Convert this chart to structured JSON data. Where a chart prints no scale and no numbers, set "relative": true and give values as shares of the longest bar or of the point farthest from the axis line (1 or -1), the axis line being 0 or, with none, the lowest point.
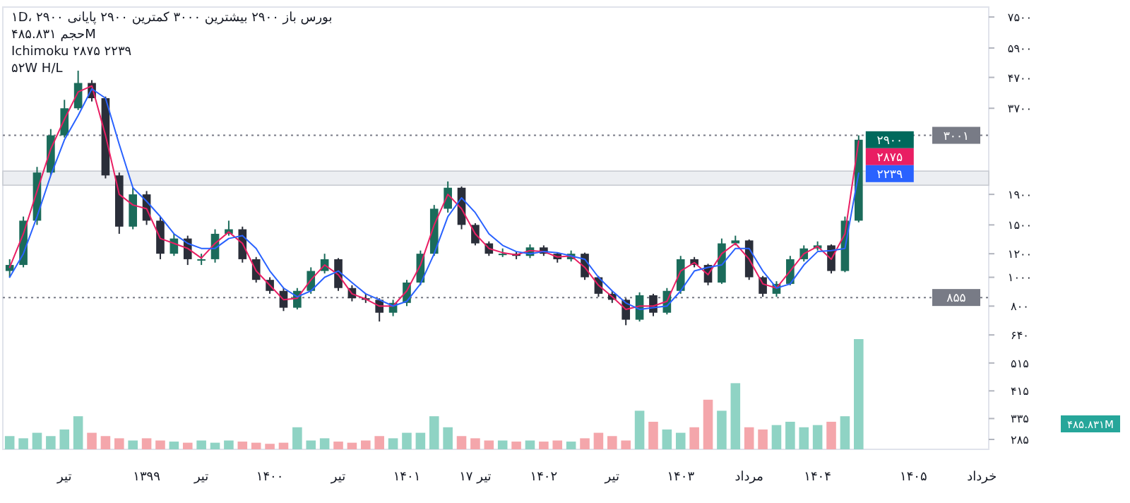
{
  "chart_data": [
    {
      "type": "candlestick",
      "log": true,
      "grid": false,
      "categories": [
        null,
        null,
        null,
        null,
        "تیر",
        null,
        null,
        null,
        null,
        null,
        "۱۳۹۹",
        null,
        null,
        null,
        "تیر",
        null,
        null,
        null,
        null,
        "۱۴۰۰",
        null,
        null,
        null,
        null,
        "تیر",
        null,
        null,
        null,
        null,
        "۱۴۰۱",
        null,
        null,
        null,
        null,
        "۱۷ تیر",
        null,
        null,
        null,
        null,
        "۱۴۰۲",
        null,
        null,
        null,
        null,
        "تیر",
        null,
        null,
        null,
        null,
        "۱۴۰۳",
        null,
        null,
        null,
        null,
        "مرداد",
        null,
        null,
        null,
        null,
        "۱۴۰۴",
        null,
        null,
        null,
        null,
        null,
        null,
        "۱۴۰۵",
        null,
        null,
        null,
        null,
        "خرداد"
      ],
      "ohlc": [
        [
          1050,
          1150,
          1000,
          1100
        ],
        [
          1100,
          1600,
          1080,
          1550
        ],
        [
          1550,
          2350,
          1500,
          2250
        ],
        [
          2250,
          3150,
          2200,
          3000
        ],
        [
          3000,
          3950,
          2950,
          3700
        ],
        [
          3700,
          4950,
          3650,
          4500
        ],
        [
          4500,
          4600,
          3900,
          4000
        ],
        [
          4000,
          4050,
          2150,
          2200
        ],
        [
          2200,
          2250,
          1400,
          1480
        ],
        [
          1480,
          2000,
          1450,
          1900
        ],
        [
          1900,
          1950,
          1500,
          1550
        ],
        [
          1550,
          1600,
          1150,
          1200
        ],
        [
          1200,
          1400,
          1180,
          1350
        ],
        [
          1350,
          1380,
          1100,
          1150
        ],
        [
          1150,
          1200,
          1100,
          1150
        ],
        [
          1150,
          1450,
          1120,
          1400
        ],
        [
          1400,
          1550,
          1380,
          1450
        ],
        [
          1450,
          1480,
          1120,
          1150
        ],
        [
          1150,
          1170,
          960,
          980
        ],
        [
          980,
          1000,
          880,
          900
        ],
        [
          900,
          920,
          770,
          790
        ],
        [
          790,
          920,
          780,
          900
        ],
        [
          900,
          1080,
          880,
          1050
        ],
        [
          1050,
          1200,
          1030,
          1150
        ],
        [
          1150,
          1160,
          900,
          920
        ],
        [
          920,
          940,
          830,
          850
        ],
        [
          850,
          880,
          820,
          840
        ],
        [
          840,
          850,
          710,
          760
        ],
        [
          760,
          840,
          740,
          820
        ],
        [
          820,
          980,
          800,
          960
        ],
        [
          960,
          1230,
          940,
          1200
        ],
        [
          1200,
          1750,
          1180,
          1700
        ],
        [
          1700,
          2100,
          1650,
          2000
        ],
        [
          2000,
          2020,
          1450,
          1500
        ],
        [
          1500,
          1520,
          1280,
          1300
        ],
        [
          1300,
          1320,
          1180,
          1200
        ],
        [
          1200,
          1250,
          1170,
          1200
        ],
        [
          1200,
          1220,
          1150,
          1180
        ],
        [
          1180,
          1290,
          1160,
          1260
        ],
        [
          1260,
          1280,
          1180,
          1200
        ],
        [
          1200,
          1210,
          1120,
          1150
        ],
        [
          1150,
          1230,
          1130,
          1200
        ],
        [
          1200,
          1210,
          980,
          1000
        ],
        [
          1000,
          1010,
          860,
          880
        ],
        [
          880,
          900,
          820,
          840
        ],
        [
          840,
          850,
          690,
          720
        ],
        [
          720,
          890,
          710,
          870
        ],
        [
          870,
          880,
          740,
          760
        ],
        [
          760,
          920,
          750,
          900
        ],
        [
          900,
          1180,
          880,
          1150
        ],
        [
          1150,
          1170,
          1080,
          1100
        ],
        [
          1100,
          1110,
          940,
          960
        ],
        [
          960,
          1350,
          950,
          1300
        ],
        [
          1300,
          1380,
          1280,
          1330
        ],
        [
          1330,
          1340,
          980,
          1000
        ],
        [
          1000,
          1010,
          860,
          880
        ],
        [
          880,
          970,
          860,
          950
        ],
        [
          950,
          1180,
          940,
          1150
        ],
        [
          1150,
          1280,
          1130,
          1250
        ],
        [
          1250,
          1320,
          1230,
          1280
        ],
        [
          1280,
          1290,
          1030,
          1050
        ],
        [
          1050,
          1600,
          1040,
          1550
        ],
        [
          1550,
          3000,
          1530,
          2900
        ],
        null,
        null,
        null,
        null,
        null,
        null,
        null,
        null,
        null
      ],
      "value_labels": [
        null,
        null,
        null,
        null,
        null,
        null,
        null,
        null,
        null,
        null,
        null,
        null,
        null,
        null,
        null,
        null,
        null,
        null,
        null,
        null,
        null,
        null,
        null,
        null,
        null,
        null,
        null,
        null,
        null,
        null,
        null,
        null,
        null,
        null,
        null,
        null,
        null,
        null,
        null,
        null,
        null,
        null,
        null,
        null,
        null,
        null,
        null,
        null,
        null,
        null,
        null,
        null,
        null,
        null,
        null,
        null,
        null,
        null,
        null,
        null,
        null,
        null,
        "۲۹۰۰",
        null,
        null,
        null,
        null,
        null,
        null,
        null,
        null,
        null
      ],
      "colors": [
        "#1b6b5a",
        "#1b6b5a",
        "#1b6b5a",
        "#1b6b5a",
        "#1b6b5a",
        "#1b6b5a",
        "#2a2e39",
        "#2a2e39",
        "#2a2e39",
        "#1b6b5a",
        "#2a2e39",
        "#2a2e39",
        "#1b6b5a",
        "#2a2e39",
        "#1b6b5a",
        "#1b6b5a",
        "#1b6b5a",
        "#2a2e39",
        "#2a2e39",
        "#2a2e39",
        "#2a2e39",
        "#1b6b5a",
        "#1b6b5a",
        "#1b6b5a",
        "#2a2e39",
        "#2a2e39",
        "#2a2e39",
        "#2a2e39",
        "#1b6b5a",
        "#1b6b5a",
        "#1b6b5a",
        "#1b6b5a",
        "#1b6b5a",
        "#2a2e39",
        "#2a2e39",
        "#2a2e39",
        "#1b6b5a",
        "#2a2e39",
        "#1b6b5a",
        "#2a2e39",
        "#2a2e39",
        "#1b6b5a",
        "#2a2e39",
        "#2a2e39",
        "#2a2e39",
        "#2a2e39",
        "#1b6b5a",
        "#2a2e39",
        "#1b6b5a",
        "#1b6b5a",
        "#2a2e39",
        "#2a2e39",
        "#1b6b5a",
        "#1b6b5a",
        "#2a2e39",
        "#2a2e39",
        "#1b6b5a",
        "#1b6b5a",
        "#1b6b5a",
        "#1b6b5a",
        "#2a2e39",
        "#1b6b5a",
        "#1b6b5a",
        null,
        null,
        null,
        null,
        null,
        null,
        null,
        null,
        null
      ],
      "series": [
        {
          "type": "line",
          "color": "#e91e63",
          "values": [
            1080,
            1400,
            1950,
            2700,
            3400,
            4200,
            4400,
            3000,
            1900,
            1750,
            1700,
            1350,
            1300,
            1250,
            1160,
            1300,
            1420,
            1300,
            1050,
            940,
            840,
            850,
            980,
            1100,
            1020,
            880,
            845,
            800,
            800,
            900,
            1100,
            1500,
            1900,
            1700,
            1400,
            1250,
            1210,
            1190,
            1230,
            1220,
            1170,
            1180,
            1080,
            940,
            860,
            780,
            800,
            800,
            830,
            1050,
            1120,
            1020,
            1200,
            1300,
            1150,
            950,
            920,
            1050,
            1200,
            1270,
            1150,
            1400,
            2875,
            null,
            null,
            null,
            null,
            null,
            null,
            null,
            null,
            null
          ],
          "value_labels": [
            null,
            null,
            null,
            null,
            null,
            null,
            null,
            null,
            null,
            null,
            null,
            null,
            null,
            null,
            null,
            null,
            null,
            null,
            null,
            null,
            null,
            null,
            null,
            null,
            null,
            null,
            null,
            null,
            null,
            null,
            null,
            null,
            null,
            null,
            null,
            null,
            null,
            null,
            null,
            null,
            null,
            null,
            null,
            null,
            null,
            null,
            null,
            null,
            null,
            null,
            null,
            null,
            null,
            null,
            null,
            null,
            null,
            null,
            null,
            null,
            null,
            null,
            "۲۸۷۵",
            null,
            null,
            null,
            null,
            null,
            null,
            null,
            null,
            null
          ]
        },
        {
          "type": "line",
          "color": "#2962ff",
          "values": [
            1000,
            1200,
            1600,
            2200,
            2900,
            3500,
            4300,
            4000,
            2800,
            2000,
            1800,
            1600,
            1400,
            1300,
            1250,
            1250,
            1350,
            1380,
            1250,
            1050,
            920,
            860,
            900,
            1000,
            1050,
            960,
            880,
            840,
            800,
            830,
            950,
            1200,
            1600,
            1850,
            1650,
            1400,
            1280,
            1220,
            1200,
            1220,
            1210,
            1180,
            1150,
            1000,
            900,
            820,
            780,
            790,
            800,
            900,
            1050,
            1080,
            1100,
            1250,
            1250,
            1050,
            920,
            950,
            1100,
            1220,
            1230,
            1250,
            2239,
            null,
            null,
            null,
            null,
            null,
            null,
            null,
            null,
            null
          ],
          "value_labels": [
            null,
            null,
            null,
            null,
            null,
            null,
            null,
            null,
            null,
            null,
            null,
            null,
            null,
            null,
            null,
            null,
            null,
            null,
            null,
            null,
            null,
            null,
            null,
            null,
            null,
            null,
            null,
            null,
            null,
            null,
            null,
            null,
            null,
            null,
            null,
            null,
            null,
            null,
            null,
            null,
            null,
            null,
            null,
            null,
            null,
            null,
            null,
            null,
            null,
            null,
            null,
            null,
            null,
            null,
            null,
            null,
            null,
            null,
            null,
            null,
            null,
            null,
            "۲۲۳۹",
            null,
            null,
            null,
            null,
            null,
            null,
            null,
            null,
            null
          ]
        }
      ],
      "ylim": [
        264,
        8100
      ],
      "yticks": [
        {
          "value": 7500,
          "label": "۷۵۰۰"
        },
        {
          "value": 5900,
          "label": "۵۹۰۰"
        },
        {
          "value": 4700,
          "label": "۴۷۰۰"
        },
        {
          "value": 3700,
          "label": "۳۷۰۰"
        },
        {
          "value": 1900,
          "label": "۱۹۰۰"
        },
        {
          "value": 1500,
          "label": "۱۵۰۰"
        },
        {
          "value": 1200,
          "label": "۱۲۰۰"
        },
        {
          "value": 1000,
          "label": "۱۰۰۰"
        },
        {
          "value": 800,
          "label": "۸۰۰"
        },
        {
          "value": 640,
          "label": "۶۴۰"
        },
        {
          "value": 515,
          "label": "۵۱۵"
        },
        {
          "value": 415,
          "label": "۴۱۵"
        },
        {
          "value": 335,
          "label": "۳۳۵"
        },
        {
          "value": 285,
          "label": "۲۸۵"
        }
      ],
      "ref_lines": [
        {
          "axis": "y",
          "value": 3001,
          "label": "۳۰۰۱",
          "color": "#787b86",
          "line_style": "dotted"
        },
        {
          "axis": "y",
          "value": 855,
          "label": "۸۵۵",
          "color": "#787b86",
          "line_style": "dotted"
        }
      ],
      "bands": [
        {
          "axis": "y",
          "from": 2040,
          "to": 2275,
          "color": "#eceef2"
        }
      ],
      "annotations": [
        "۱D، بورس  باز ۲۹۰۰  بیشترین ۳۰۰۰  کمترین ۲۹۰۰  پایانی ۲۹۰۰",
        "حجم ۴۸۵.۸۳۱M",
        "Ichimoku ۲۸۷۵ ۲۲۳۹",
        "۵۲W H/L"
      ]
    },
    {
      "type": "bar",
      "relative": true,
      "categories": [
        null,
        null,
        null,
        null,
        null,
        null,
        null,
        null,
        null,
        null,
        null,
        null,
        null,
        null,
        null,
        null,
        null,
        null,
        null,
        null,
        null,
        null,
        null,
        null,
        null,
        null,
        null,
        null,
        null,
        null,
        null,
        null,
        null,
        null,
        null,
        null,
        null,
        null,
        null,
        null,
        null,
        null,
        null,
        null,
        null,
        null,
        null,
        null,
        null,
        null,
        null,
        null,
        null,
        null,
        null,
        null,
        null,
        null,
        null,
        null,
        null,
        null,
        null,
        null,
        null,
        null,
        null,
        null,
        null,
        null,
        null,
        null
      ],
      "values": [
        0.12,
        0.1,
        0.15,
        0.12,
        0.18,
        0.3,
        0.15,
        0.12,
        0.1,
        0.08,
        0.1,
        0.08,
        0.07,
        0.06,
        0.08,
        0.06,
        0.08,
        0.07,
        0.06,
        0.05,
        0.06,
        0.2,
        0.08,
        0.1,
        0.07,
        0.06,
        0.08,
        0.12,
        0.1,
        0.15,
        0.15,
        0.3,
        0.2,
        0.12,
        0.1,
        0.08,
        0.08,
        0.07,
        0.08,
        0.07,
        0.08,
        0.07,
        0.1,
        0.15,
        0.12,
        0.08,
        0.35,
        0.25,
        0.18,
        0.15,
        0.2,
        0.45,
        0.35,
        0.6,
        0.2,
        0.18,
        0.22,
        0.25,
        0.2,
        0.22,
        0.25,
        0.3,
        1,
        null,
        null,
        null,
        null,
        null,
        null,
        null,
        null,
        null
      ],
      "colors": [
        "#8fd3c4",
        "#8fd3c4",
        "#8fd3c4",
        "#8fd3c4",
        "#8fd3c4",
        "#8fd3c4",
        "#f4a6ab",
        "#f4a6ab",
        "#f4a6ab",
        "#8fd3c4",
        "#f4a6ab",
        "#f4a6ab",
        "#8fd3c4",
        "#f4a6ab",
        "#8fd3c4",
        "#8fd3c4",
        "#8fd3c4",
        "#f4a6ab",
        "#f4a6ab",
        "#f4a6ab",
        "#f4a6ab",
        "#8fd3c4",
        "#8fd3c4",
        "#8fd3c4",
        "#f4a6ab",
        "#f4a6ab",
        "#f4a6ab",
        "#f4a6ab",
        "#8fd3c4",
        "#8fd3c4",
        "#8fd3c4",
        "#8fd3c4",
        "#8fd3c4",
        "#f4a6ab",
        "#f4a6ab",
        "#f4a6ab",
        "#8fd3c4",
        "#f4a6ab",
        "#8fd3c4",
        "#f4a6ab",
        "#f4a6ab",
        "#8fd3c4",
        "#f4a6ab",
        "#f4a6ab",
        "#f4a6ab",
        "#f4a6ab",
        "#8fd3c4",
        "#f4a6ab",
        "#8fd3c4",
        "#8fd3c4",
        "#f4a6ab",
        "#f4a6ab",
        "#8fd3c4",
        "#8fd3c4",
        "#f4a6ab",
        "#f4a6ab",
        "#8fd3c4",
        "#8fd3c4",
        "#8fd3c4",
        "#8fd3c4",
        "#f4a6ab",
        "#8fd3c4",
        "#8fd3c4",
        null,
        null,
        null,
        null,
        null,
        null,
        null,
        null,
        null
      ],
      "annotations": [
        "۴۸۵.۸۳۱M"
      ]
    }
  ]
}
